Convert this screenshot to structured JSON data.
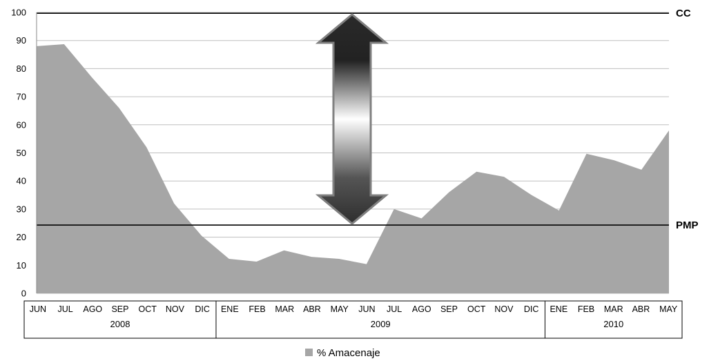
{
  "chart_data": {
    "type": "area",
    "categories": [
      "JUN",
      "JUL",
      "AGO",
      "SEP",
      "OCT",
      "NOV",
      "DIC",
      "ENE",
      "FEB",
      "MAR",
      "ABR",
      "MAY",
      "JUN",
      "JUL",
      "AGO",
      "SEP",
      "OCT",
      "NOV",
      "DIC",
      "ENE",
      "FEB",
      "MAR",
      "ABR",
      "MAY"
    ],
    "year_groups": [
      {
        "label": "2008",
        "count": 7
      },
      {
        "label": "2009",
        "count": 12
      },
      {
        "label": "2010",
        "count": 5
      }
    ],
    "series": [
      {
        "name": "% Amacenaje",
        "values": [
          88,
          88.7,
          77,
          66,
          52,
          32,
          20.5,
          12.3,
          11.3,
          15.3,
          13,
          12.3,
          10.4,
          30,
          26.7,
          36,
          43.3,
          41.5,
          35,
          29.5,
          49.7,
          47.4,
          44,
          58
        ]
      }
    ],
    "ylim": [
      0,
      100
    ],
    "yticks": [
      "0",
      "10",
      "20",
      "30",
      "40",
      "50",
      "60",
      "70",
      "80",
      "90",
      "100"
    ],
    "reference_lines": [
      {
        "label": "CC",
        "value": 99.7
      },
      {
        "label": "PMP",
        "value": 24.3
      }
    ],
    "grid": true,
    "legend": "bottom",
    "area_color": "#a6a6a6"
  }
}
